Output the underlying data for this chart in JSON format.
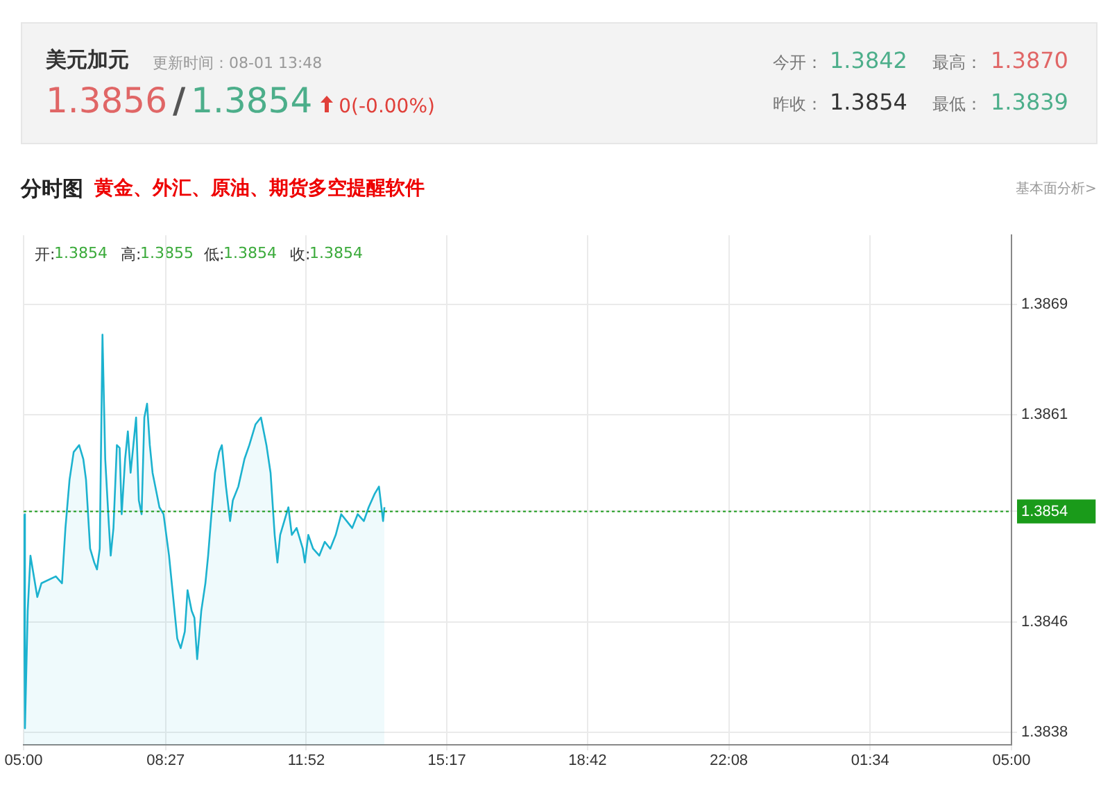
{
  "chart_data": {
    "type": "area",
    "title": "美元加元",
    "subtitle": "更新时间：08-01 13:48",
    "annotations": [
      "1.3856",
      "/",
      "1.3854",
      "0(-0.00%)",
      "今开：",
      "1.3842",
      "最高：",
      "1.3870",
      "昨收：",
      "1.3854",
      "最低：",
      "1.3839",
      "分时图",
      "黄金、外汇、原油、期货多空提醒软件",
      "基本面分析>",
      "开:",
      "1.3854",
      "高:",
      "1.3855",
      "低:",
      "1.3854",
      "收:",
      "1.3854"
    ],
    "x": [
      "--08-01T05:00",
      "--08-01T05:02",
      "--08-01T05:06",
      "--08-01T05:10",
      "--08-01T05:20",
      "--08-01T05:26",
      "--08-01T05:47",
      "--08-01T05:56",
      "--08-01T06:01",
      "--08-01T06:07",
      "--08-01T06:13",
      "--08-01T06:21",
      "--08-01T06:27",
      "--08-01T06:31",
      "--08-01T06:37",
      "--08-01T06:43",
      "--08-01T06:47",
      "--08-01T06:51",
      "--08-01T06:55",
      "--08-01T06:59",
      "--08-01T07:04",
      "--08-01T07:07",
      "--08-01T07:11",
      "--08-01T07:16",
      "--08-01T07:20",
      "--08-01T07:23",
      "--08-01T07:28",
      "--08-01T07:32",
      "--08-01T07:36",
      "--08-01T07:40",
      "--08-01T07:44",
      "--08-01T07:48",
      "--08-01T07:52",
      "--08-01T07:56",
      "--08-01T08:00",
      "--08-01T08:04",
      "--08-01T08:08",
      "--08-01T08:14",
      "--08-01T08:18",
      "--08-01T08:24",
      "--08-01T08:28",
      "--08-01T08:32",
      "--08-01T08:38",
      "--08-01T08:44",
      "--08-01T08:49",
      "--08-01T08:55",
      "--08-01T08:59",
      "--08-01T09:05",
      "--08-01T09:09",
      "--08-01T09:13",
      "--08-01T09:19",
      "--08-01T09:25",
      "--08-01T09:29",
      "--08-01T09:33",
      "--08-01T09:39",
      "--08-01T09:45",
      "--08-01T09:49",
      "--08-01T09:55",
      "--08-01T10:01",
      "--08-01T10:05",
      "--08-01T10:13",
      "--08-01T10:22",
      "--08-01T10:29",
      "--08-01T10:38",
      "--08-01T10:46",
      "--08-01T10:54",
      "--08-01T11:00",
      "--08-01T11:06",
      "--08-01T11:10",
      "--08-01T11:14",
      "--08-01T11:20",
      "--08-01T11:26",
      "--08-01T11:31",
      "--08-01T11:38",
      "--08-01T11:47",
      "--08-01T11:50",
      "--08-01T11:55",
      "--08-01T12:02",
      "--08-01T12:11",
      "--08-01T12:19",
      "--08-01T12:27",
      "--08-01T12:35",
      "--08-01T12:43",
      "--08-01T12:51",
      "--08-01T12:59",
      "--08-01T13:07",
      "--08-01T13:16",
      "--08-01T13:23",
      "--08-01T13:32",
      "--08-01T13:38",
      "--08-01T13:44",
      "--08-01T13:46"
    ],
    "series": [
      {
        "color": "#1cb2cf",
        "values": [
          1.38538,
          1.38383,
          1.38468,
          1.38508,
          1.38478,
          1.38488,
          1.38493,
          1.38488,
          1.38528,
          1.38563,
          1.38583,
          1.38588,
          1.38578,
          1.38563,
          1.38513,
          1.38503,
          1.38498,
          1.38513,
          1.38668,
          1.38578,
          1.38533,
          1.38508,
          1.38528,
          1.38588,
          1.38586,
          1.38538,
          1.38578,
          1.38598,
          1.38568,
          1.38588,
          1.38608,
          1.38548,
          1.38538,
          1.38608,
          1.38618,
          1.38588,
          1.38568,
          1.38553,
          1.38543,
          1.38538,
          1.38523,
          1.38508,
          1.38478,
          1.38448,
          1.38441,
          1.38453,
          1.38483,
          1.38468,
          1.38463,
          1.38433,
          1.38468,
          1.38488,
          1.38508,
          1.38533,
          1.38568,
          1.38583,
          1.38588,
          1.38558,
          1.38533,
          1.38548,
          1.38558,
          1.38578,
          1.38588,
          1.38603,
          1.38608,
          1.38588,
          1.38568,
          1.38523,
          1.38503,
          1.38523,
          1.38533,
          1.38543,
          1.38523,
          1.38528,
          1.38513,
          1.38503,
          1.38523,
          1.38513,
          1.38508,
          1.38518,
          1.38513,
          1.38523,
          1.38538,
          1.38533,
          1.38528,
          1.38538,
          1.38533,
          1.38543,
          1.38553,
          1.38558,
          1.38533,
          1.38543
        ]
      }
    ],
    "xlim": [
      "--08-01T05:00",
      "--08-02T05:00"
    ],
    "xticks": [
      {
        "value": "--08-01T05:00",
        "label": "05:00"
      },
      {
        "value": "--08-01T08:27",
        "label": "08:27"
      },
      {
        "value": "--08-01T11:52",
        "label": "11:52"
      },
      {
        "value": "--08-01T15:17",
        "label": "15:17"
      },
      {
        "value": "--08-01T18:42",
        "label": "18:42"
      },
      {
        "value": "--08-01T22:08",
        "label": "22:08"
      },
      {
        "value": "--08-02T01:34",
        "label": "01:34"
      },
      {
        "value": "--08-02T05:00",
        "label": "05:00"
      }
    ],
    "ylim": [
      1.38371,
      1.3874
    ],
    "yticks": [
      1.3838,
      1.3846,
      1.3854,
      1.3861,
      1.3869
    ],
    "ref_lines": [
      {
        "axis": "y",
        "value": 1.3854,
        "color": "#1a9b1a",
        "line_style": "dotted"
      }
    ],
    "grid": true,
    "legend": false,
    "marker": "none",
    "line_style": "solid"
  }
}
